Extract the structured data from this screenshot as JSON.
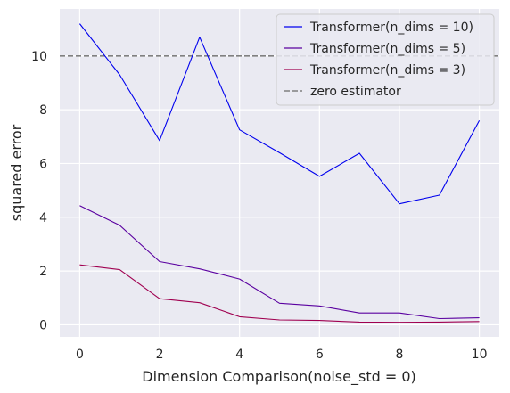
{
  "chart_data": {
    "type": "line",
    "xlabel": "Dimension Comparison(noise_std = 0)",
    "ylabel": "squared error",
    "xlim": [
      -0.5,
      10.5
    ],
    "ylim": [
      -0.45,
      11.75
    ],
    "grid": true,
    "legend_position": "top-right",
    "x_ticks": [
      "0",
      "2",
      "4",
      "6",
      "8",
      "10"
    ],
    "y_ticks": [
      "0",
      "2",
      "4",
      "6",
      "8",
      "10"
    ],
    "x": [
      0,
      1,
      2,
      3,
      4,
      5,
      6,
      7,
      8,
      9,
      10
    ],
    "series": [
      {
        "name": "Transformer(n_dims = 10)",
        "color": "#0000ee",
        "values": [
          11.2,
          9.3,
          6.85,
          10.7,
          7.25,
          6.4,
          5.52,
          6.38,
          4.5,
          4.82,
          7.6
        ]
      },
      {
        "name": "Transformer(n_dims = 5)",
        "color": "#5a00a0",
        "values": [
          4.43,
          3.7,
          2.35,
          2.08,
          1.7,
          0.8,
          0.7,
          0.44,
          0.44,
          0.23,
          0.26
        ]
      },
      {
        "name": "Transformer(n_dims = 3)",
        "color": "#a00050",
        "values": [
          2.23,
          2.05,
          0.97,
          0.82,
          0.3,
          0.18,
          0.16,
          0.1,
          0.09,
          0.1,
          0.12
        ]
      }
    ],
    "reference_lines": [
      {
        "name": "zero estimator",
        "y": 10.0,
        "color": "#808080",
        "style": "dashed"
      }
    ]
  }
}
